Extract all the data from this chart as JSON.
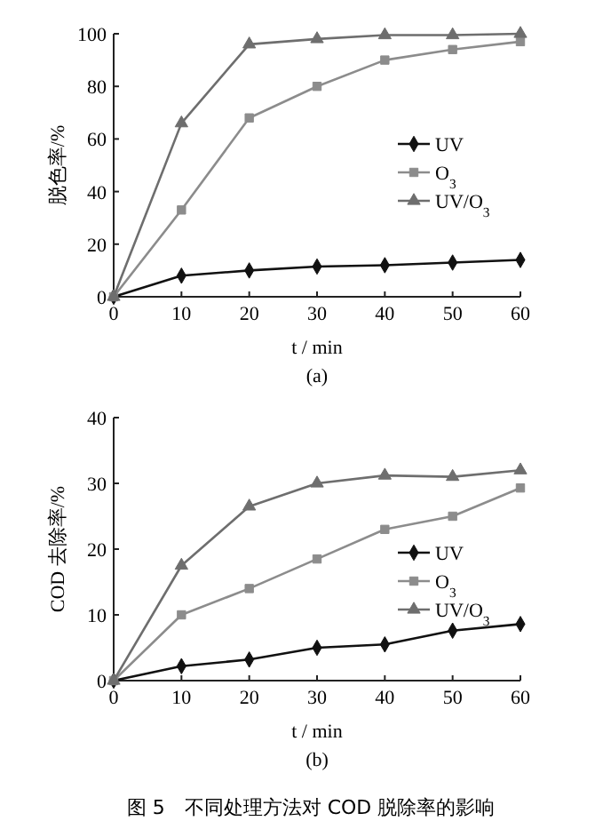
{
  "chart_data": [
    {
      "type": "line",
      "xlabel": "t / min",
      "ylabel": "脱色率/%",
      "x": [
        0,
        10,
        20,
        30,
        40,
        50,
        60
      ],
      "xlim": [
        0,
        60
      ],
      "xticks": [
        0,
        10,
        20,
        30,
        40,
        50,
        60
      ],
      "ylim": [
        0,
        100
      ],
      "yticks": [
        0,
        20,
        40,
        60,
        80,
        100
      ],
      "grid": false,
      "legend": "right",
      "annotations": [
        "(a)"
      ],
      "series": [
        {
          "name": "UV",
          "color": "#111111",
          "marker": "diamond",
          "values": [
            0,
            8,
            10,
            11.5,
            12,
            13,
            14
          ]
        },
        {
          "name": "O$_{3}$",
          "color": "#8c8c8c",
          "marker": "square",
          "values": [
            0,
            33,
            68,
            80,
            90,
            94,
            97
          ]
        },
        {
          "name": "UV/O$_{3}$",
          "color": "#6e6e6e",
          "marker": "triangle",
          "values": [
            0,
            66,
            96,
            98,
            99.5,
            99.5,
            100
          ]
        }
      ]
    },
    {
      "type": "line",
      "xlabel": "t / min",
      "ylabel": "COD 去除率/%",
      "x": [
        0,
        10,
        20,
        30,
        40,
        50,
        60
      ],
      "xlim": [
        0,
        60
      ],
      "xticks": [
        0,
        10,
        20,
        30,
        40,
        50,
        60
      ],
      "ylim": [
        0,
        40
      ],
      "yticks": [
        0,
        10,
        20,
        30,
        40
      ],
      "grid": false,
      "legend": "right",
      "annotations": [
        "(b)",
        "图 5　不同处理方法对 COD 脱除率的影响"
      ],
      "series": [
        {
          "name": "UV",
          "color": "#111111",
          "marker": "diamond",
          "values": [
            0,
            2.2,
            3.2,
            5,
            5.5,
            7.6,
            8.6
          ]
        },
        {
          "name": "O$_{3}$",
          "color": "#8c8c8c",
          "marker": "square",
          "values": [
            0,
            10,
            14,
            18.5,
            23,
            25,
            29.3
          ]
        },
        {
          "name": "UV/O$_{3}$",
          "color": "#6e6e6e",
          "marker": "triangle",
          "values": [
            0,
            17.5,
            26.5,
            30,
            31.2,
            31,
            32
          ]
        }
      ]
    }
  ]
}
